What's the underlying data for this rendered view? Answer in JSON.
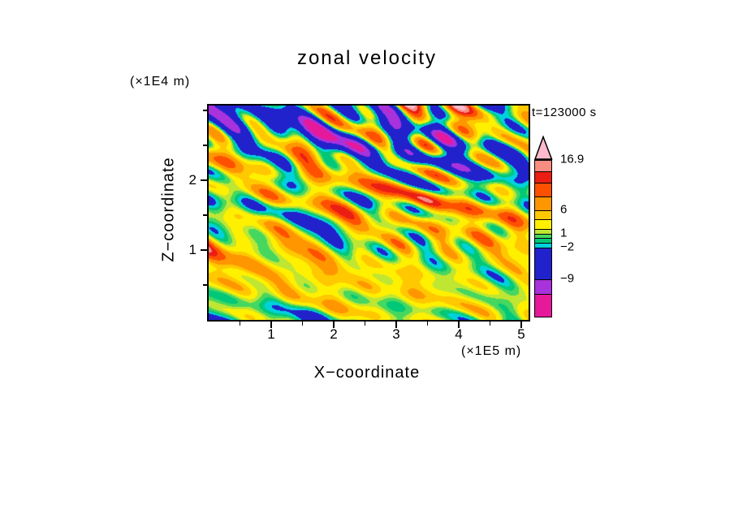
{
  "figure": {
    "background": "#FFFFFF",
    "frame_color": "#000000",
    "text_color": "#000000"
  },
  "chart_data": {
    "type": "heatmap",
    "title": "zonal velocity",
    "timestamp_label": "t=123000 s",
    "x_axis": {
      "label": "X−coordinate",
      "unit_label": "(×1E5 m)",
      "min": 0,
      "max": 5.12,
      "major_ticks": [
        1,
        2,
        3,
        4,
        5
      ],
      "minor_ticks": [
        0.5,
        1.5,
        2.5,
        3.5,
        4.5
      ]
    },
    "z_axis": {
      "label": "Z−coordinate",
      "unit_label": "(×1E4 m)",
      "min": 0,
      "max": 3.07,
      "major_ticks": [
        1,
        2
      ],
      "minor_ticks": [
        0.5,
        1.5,
        2.5,
        3
      ]
    },
    "colorbar": {
      "value_min": -17,
      "value_max": 16.9,
      "arrow": true,
      "levels": [
        -12,
        -9,
        -2,
        -1,
        0,
        1,
        2,
        4,
        6,
        9,
        12,
        14.5,
        16.9
      ],
      "colors": [
        "#E6199B",
        "#A832DC",
        "#2222CC",
        "#00D2DC",
        "#00C878",
        "#46D75F",
        "#BEE632",
        "#FFF000",
        "#FFC800",
        "#FF9600",
        "#FF5000",
        "#EB1E14",
        "#FA8C82",
        "#FFB9CC"
      ],
      "labels": [
        {
          "text": "16.9",
          "level": 16.9
        },
        {
          "text": "6",
          "level": 6
        },
        {
          "text": "1",
          "level": 1
        },
        {
          "text": "−2",
          "level": -2
        },
        {
          "text": "−9",
          "level": -9
        }
      ]
    },
    "field": {
      "seed": 1234567,
      "modes": 34,
      "mean_base": 1.3,
      "band_amp": 2.2,
      "band_freq": 5.5,
      "band_phase": -0.33,
      "amp_bottom": 2.6,
      "amp_top": 8.2,
      "amp_power": 1.4,
      "neg_scale": 0.72
    }
  }
}
